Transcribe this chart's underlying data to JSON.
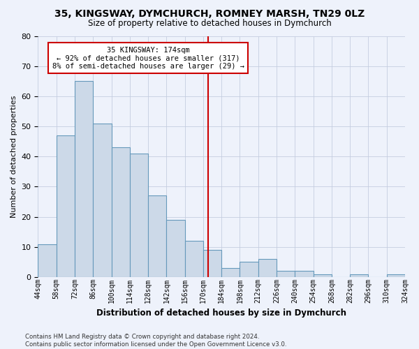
{
  "title1": "35, KINGSWAY, DYMCHURCH, ROMNEY MARSH, TN29 0LZ",
  "title2": "Size of property relative to detached houses in Dymchurch",
  "xlabel": "Distribution of detached houses by size in Dymchurch",
  "ylabel": "Number of detached properties",
  "bin_edges": [
    44,
    58,
    72,
    86,
    100,
    114,
    128,
    142,
    156,
    170,
    184,
    198,
    212,
    226,
    240,
    254,
    268,
    282,
    296,
    310,
    324
  ],
  "bar_heights": [
    11,
    47,
    65,
    51,
    43,
    41,
    27,
    19,
    12,
    9,
    3,
    5,
    6,
    2,
    2,
    1,
    0,
    1,
    0,
    1
  ],
  "bin_labels": [
    "44sqm",
    "58sqm",
    "72sqm",
    "86sqm",
    "100sqm",
    "114sqm",
    "128sqm",
    "142sqm",
    "156sqm",
    "170sqm",
    "184sqm",
    "198sqm",
    "212sqm",
    "226sqm",
    "240sqm",
    "254sqm",
    "268sqm",
    "282sqm",
    "296sqm",
    "310sqm",
    "324sqm"
  ],
  "bar_color": "#ccd9e8",
  "bar_edge_color": "#6699bb",
  "vline_x": 174,
  "vline_color": "#cc0000",
  "annotation_text": "35 KINGSWAY: 174sqm\n← 92% of detached houses are smaller (317)\n8% of semi-detached houses are larger (29) →",
  "ylim": [
    0,
    80
  ],
  "yticks": [
    0,
    10,
    20,
    30,
    40,
    50,
    60,
    70,
    80
  ],
  "bg_color": "#eef2fb",
  "grid_color": "#c5cde0",
  "footer": "Contains HM Land Registry data © Crown copyright and database right 2024.\nContains public sector information licensed under the Open Government Licence v3.0."
}
